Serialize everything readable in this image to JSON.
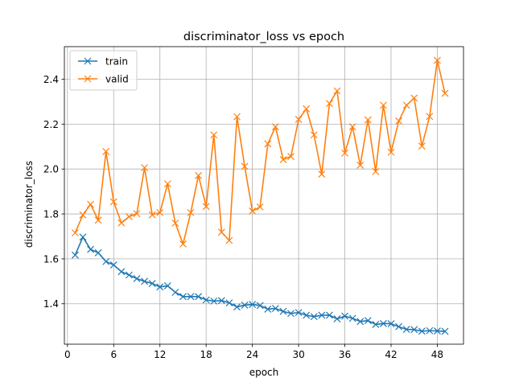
{
  "chart_data": {
    "type": "line",
    "title": "discriminator_loss vs epoch",
    "xlabel": "epoch",
    "ylabel": "discriminator_loss",
    "xlim": [
      -0.4,
      51.4
    ],
    "ylim": [
      1.22,
      2.545
    ],
    "xticks": [
      0,
      6,
      12,
      18,
      24,
      30,
      36,
      42,
      48
    ],
    "yticks": [
      1.4,
      1.6,
      1.8,
      2.0,
      2.2,
      2.4
    ],
    "grid": true,
    "legend_position": "top-left",
    "marker": "x",
    "x": [
      1,
      2,
      3,
      4,
      5,
      6,
      7,
      8,
      9,
      10,
      11,
      12,
      13,
      14,
      15,
      16,
      17,
      18,
      19,
      20,
      21,
      22,
      23,
      24,
      25,
      26,
      27,
      28,
      29,
      30,
      31,
      32,
      33,
      34,
      35,
      36,
      37,
      38,
      39,
      40,
      41,
      42,
      43,
      44,
      45,
      46,
      47,
      48,
      49
    ],
    "series": [
      {
        "name": "train",
        "color": "#1f77b4",
        "values": [
          1.617,
          1.697,
          1.642,
          1.627,
          1.588,
          1.573,
          1.543,
          1.528,
          1.512,
          1.5,
          1.49,
          1.475,
          1.48,
          1.451,
          1.432,
          1.432,
          1.432,
          1.417,
          1.412,
          1.414,
          1.404,
          1.386,
          1.394,
          1.397,
          1.392,
          1.376,
          1.379,
          1.366,
          1.357,
          1.361,
          1.349,
          1.343,
          1.349,
          1.349,
          1.333,
          1.345,
          1.335,
          1.321,
          1.325,
          1.308,
          1.312,
          1.311,
          1.298,
          1.286,
          1.285,
          1.278,
          1.28,
          1.279,
          1.277
        ]
      },
      {
        "name": "valid",
        "color": "#ff7f0e",
        "values": [
          1.716,
          1.796,
          1.843,
          1.772,
          2.078,
          1.854,
          1.76,
          1.788,
          1.801,
          2.006,
          1.796,
          1.806,
          1.934,
          1.759,
          1.666,
          1.806,
          1.971,
          1.833,
          2.152,
          1.719,
          1.682,
          2.233,
          2.012,
          1.813,
          1.831,
          2.112,
          2.188,
          2.042,
          2.056,
          2.221,
          2.268,
          2.152,
          1.977,
          2.292,
          2.348,
          2.071,
          2.188,
          2.017,
          2.219,
          1.989,
          2.284,
          2.075,
          2.214,
          2.284,
          2.316,
          2.102,
          2.234,
          2.484,
          2.337
        ]
      }
    ]
  }
}
